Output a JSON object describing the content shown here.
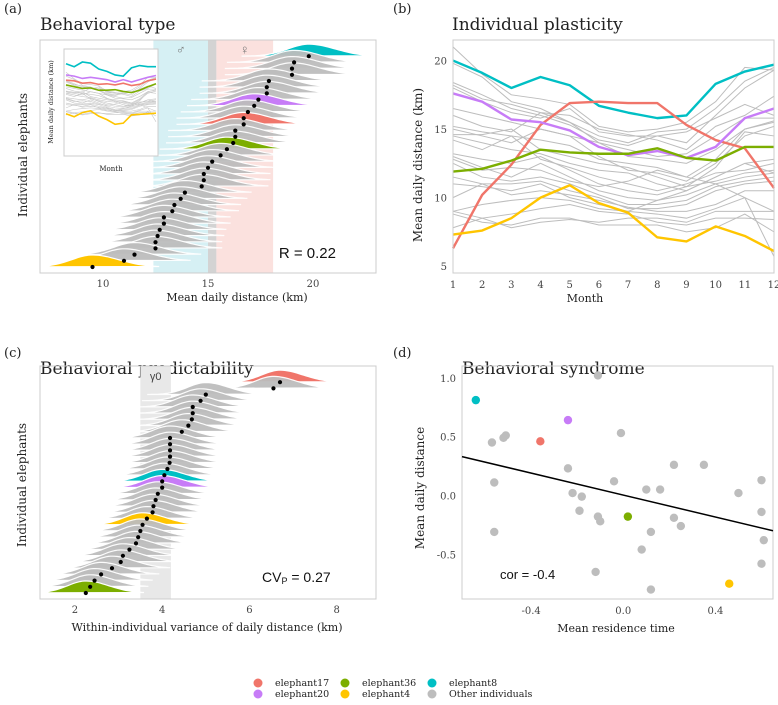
{
  "colors": {
    "elephant17": "#F0756A",
    "elephant20": "#C77CF7",
    "elephant36": "#7CAE00",
    "elephant4": "#FFC500",
    "elephant8": "#00BFC4",
    "other": "#BDBDBD",
    "male_band": "#D6F0F4",
    "female_band": "#FBE1DE",
    "gamma_band": "#E8E8E8",
    "divider_band": "#D3D3D3",
    "frame": "#CCCCCC"
  },
  "legend": {
    "items": [
      {
        "key": "elephant17",
        "label": "elephant17"
      },
      {
        "key": "elephant20",
        "label": "elephant20"
      },
      {
        "key": "elephant36",
        "label": "elephant36"
      },
      {
        "key": "elephant4",
        "label": "elephant4"
      },
      {
        "key": "elephant8",
        "label": "elephant8"
      },
      {
        "key": "other",
        "label": "Other individuals"
      }
    ]
  },
  "chart_data": [
    {
      "panel": "(a)",
      "type": "ridgeline",
      "title": "Behavioral type",
      "xlabel": "Mean daily distance (km)",
      "ylabel": "Individual elephants",
      "xlim": [
        7,
        23
      ],
      "xticks": [
        10,
        15,
        20
      ],
      "annotation": "R = 0.22",
      "bands": [
        {
          "label": "male-symbol",
          "glyph": "♂",
          "from": 12.4,
          "to": 15.0,
          "color": "male_band"
        },
        {
          "label": "divider",
          "glyph": "",
          "from": 15.0,
          "to": 15.4,
          "color": "divider_band"
        },
        {
          "label": "female-symbol",
          "glyph": "♀",
          "from": 15.4,
          "to": 18.1,
          "color": "female_band"
        }
      ],
      "individuals": [
        {
          "key": "elephant4",
          "mean": 9.5
        },
        {
          "key": "other",
          "mean": 11.0
        },
        {
          "key": "other",
          "mean": 11.5
        },
        {
          "key": "other",
          "mean": 12.5
        },
        {
          "key": "other",
          "mean": 12.5
        },
        {
          "key": "other",
          "mean": 12.6
        },
        {
          "key": "other",
          "mean": 12.7
        },
        {
          "key": "other",
          "mean": 12.9
        },
        {
          "key": "other",
          "mean": 12.9
        },
        {
          "key": "other",
          "mean": 13.3
        },
        {
          "key": "other",
          "mean": 13.4
        },
        {
          "key": "other",
          "mean": 13.7
        },
        {
          "key": "other",
          "mean": 13.9
        },
        {
          "key": "other",
          "mean": 14.7
        },
        {
          "key": "other",
          "mean": 14.8
        },
        {
          "key": "other",
          "mean": 14.8
        },
        {
          "key": "other",
          "mean": 15.0
        },
        {
          "key": "other",
          "mean": 15.2
        },
        {
          "key": "other",
          "mean": 15.6
        },
        {
          "key": "elephant36",
          "mean": 15.9
        },
        {
          "key": "other",
          "mean": 16.2
        },
        {
          "key": "other",
          "mean": 16.3
        },
        {
          "key": "other",
          "mean": 16.3
        },
        {
          "key": "elephant17",
          "mean": 16.7
        },
        {
          "key": "other",
          "mean": 16.7
        },
        {
          "key": "other",
          "mean": 16.9
        },
        {
          "key": "elephant20",
          "mean": 17.2
        },
        {
          "key": "other",
          "mean": 17.4
        },
        {
          "key": "other",
          "mean": 17.8
        },
        {
          "key": "other",
          "mean": 17.8
        },
        {
          "key": "other",
          "mean": 17.9
        },
        {
          "key": "other",
          "mean": 19.0
        },
        {
          "key": "other",
          "mean": 19.0
        },
        {
          "key": "other",
          "mean": 19.1
        },
        {
          "key": "elephant8",
          "mean": 19.8
        }
      ],
      "inset": {
        "xlabel": "Month",
        "ylabel": "Mean daily distance (km)"
      }
    },
    {
      "panel": "(b)",
      "type": "line",
      "title": "Individual plasticity",
      "xlabel": "Month",
      "ylabel": "Mean daily distance (km)",
      "x": [
        1,
        2,
        3,
        4,
        5,
        6,
        7,
        8,
        9,
        10,
        11,
        12
      ],
      "xlim": [
        1,
        12
      ],
      "ylim": [
        4.5,
        21.5
      ],
      "yticks": [
        5,
        10,
        15,
        20
      ],
      "series": [
        {
          "name": "elephant8",
          "values": [
            20.0,
            19.1,
            18.0,
            18.8,
            18.2,
            16.7,
            16.2,
            15.8,
            16.0,
            18.3,
            19.2,
            19.7
          ]
        },
        {
          "name": "elephant17",
          "values": [
            6.3,
            10.2,
            12.4,
            15.3,
            16.9,
            17.0,
            16.9,
            16.9,
            15.3,
            14.2,
            13.6,
            10.7
          ]
        },
        {
          "name": "elephant20",
          "values": [
            17.6,
            17.0,
            15.7,
            15.5,
            14.9,
            13.7,
            13.1,
            13.4,
            12.9,
            13.7,
            15.8,
            16.5
          ]
        },
        {
          "name": "elephant36",
          "values": [
            11.9,
            12.1,
            12.7,
            13.5,
            13.3,
            13.2,
            13.2,
            13.6,
            12.9,
            12.7,
            13.7,
            13.7
          ]
        },
        {
          "name": "elephant4",
          "values": [
            7.3,
            7.6,
            8.5,
            10.0,
            10.9,
            9.6,
            8.9,
            7.1,
            6.8,
            7.9,
            7.2,
            6.1
          ]
        }
      ],
      "other_series": [
        [
          21.0,
          19.0,
          17.5,
          17.2,
          16.8,
          15.2,
          14.8,
          15.0,
          15.5,
          17.0,
          19.5,
          19.3
        ],
        [
          19.8,
          18.8,
          17.0,
          16.5,
          15.5,
          14.5,
          14.0,
          14.8,
          15.0,
          16.5,
          18.5,
          19.5
        ],
        [
          18.4,
          17.5,
          16.5,
          16.0,
          15.3,
          14.2,
          13.8,
          14.5,
          14.0,
          16.0,
          18.0,
          19.3
        ],
        [
          18.2,
          17.2,
          16.8,
          16.2,
          16.0,
          15.0,
          14.6,
          14.2,
          13.5,
          15.2,
          16.0,
          17.4
        ],
        [
          18.0,
          17.0,
          16.2,
          15.8,
          16.5,
          14.8,
          14.5,
          14.5,
          14.8,
          15.8,
          16.8,
          16.0
        ],
        [
          16.5,
          16.0,
          15.5,
          15.0,
          14.5,
          14.0,
          13.5,
          13.0,
          13.2,
          14.5,
          15.8,
          15.8
        ],
        [
          16.0,
          15.2,
          14.8,
          16.2,
          15.5,
          14.0,
          13.0,
          12.8,
          12.5,
          13.5,
          15.0,
          15.6
        ],
        [
          15.2,
          14.8,
          14.5,
          14.2,
          13.8,
          12.8,
          12.5,
          12.2,
          11.5,
          12.8,
          15.0,
          15.5
        ],
        [
          15.0,
          14.5,
          14.0,
          15.0,
          14.5,
          13.0,
          12.0,
          11.8,
          11.2,
          12.5,
          14.5,
          15.2
        ],
        [
          14.6,
          14.6,
          15.0,
          13.5,
          13.0,
          12.5,
          12.2,
          11.5,
          10.8,
          12.2,
          14.8,
          14.5
        ],
        [
          14.5,
          14.0,
          13.5,
          13.2,
          12.5,
          12.0,
          11.8,
          11.0,
          10.5,
          11.5,
          12.5,
          12.8
        ],
        [
          14.2,
          13.5,
          14.5,
          12.8,
          12.2,
          11.5,
          11.0,
          10.5,
          11.0,
          11.8,
          12.0,
          12.5
        ],
        [
          13.2,
          12.8,
          12.5,
          13.0,
          12.0,
          11.0,
          10.5,
          10.2,
          10.8,
          11.2,
          11.8,
          12.0
        ],
        [
          13.0,
          12.2,
          11.5,
          12.5,
          11.5,
          10.5,
          10.0,
          9.8,
          10.2,
          11.0,
          11.5,
          11.8
        ],
        [
          12.5,
          11.5,
          11.2,
          11.5,
          11.0,
          10.2,
          9.5,
          9.5,
          9.8,
          10.8,
          11.2,
          11.5
        ],
        [
          11.5,
          11.0,
          11.0,
          11.2,
          10.5,
          10.0,
          9.2,
          9.2,
          9.5,
          10.5,
          11.0,
          11.2
        ],
        [
          11.0,
          10.8,
          10.5,
          11.0,
          10.0,
          9.5,
          9.0,
          9.8,
          10.5,
          11.5,
          12.5,
          11.8
        ],
        [
          10.0,
          11.0,
          10.2,
          10.5,
          10.2,
          9.8,
          9.3,
          9.0,
          9.0,
          9.5,
          10.5,
          10.5
        ],
        [
          9.0,
          9.5,
          9.8,
          10.0,
          9.8,
          9.2,
          9.0,
          8.8,
          8.5,
          9.2,
          10.0,
          9.0
        ],
        [
          9.0,
          8.5,
          7.8,
          8.2,
          8.4,
          8.2,
          8.5,
          8.5,
          8.2,
          9.0,
          9.0,
          9.0
        ],
        [
          8.8,
          8.2,
          8.0,
          8.5,
          8.5,
          8.0,
          8.0,
          8.0,
          7.5,
          7.8,
          8.8,
          7.5
        ],
        [
          7.8,
          8.5,
          8.8,
          9.2,
          9.5,
          9.0,
          8.8,
          8.2,
          8.0,
          8.5,
          8.5,
          8.4
        ],
        [
          12.8,
          12.0,
          12.2,
          12.0,
          11.2,
          10.8,
          11.2,
          12.0,
          11.5,
          11.0,
          10.0,
          5.7
        ]
      ]
    },
    {
      "panel": "(c)",
      "type": "ridgeline",
      "title": "Behavioral predictability",
      "xlabel": "Within-individual variance of daily distance (km)",
      "ylabel": "Individual elephants",
      "xlim": [
        1.2,
        8.9
      ],
      "xticks": [
        2,
        4,
        6,
        8
      ],
      "annotation": "CV",
      "annotation_sub": "P",
      "annotation_value": " = 0.27",
      "band": {
        "label": "γ0",
        "from": 3.5,
        "to": 4.2
      },
      "individuals": [
        {
          "key": "elephant36",
          "mean": 2.25
        },
        {
          "key": "other",
          "mean": 2.35
        },
        {
          "key": "other",
          "mean": 2.45
        },
        {
          "key": "other",
          "mean": 2.6
        },
        {
          "key": "other",
          "mean": 2.85
        },
        {
          "key": "other",
          "mean": 3.05
        },
        {
          "key": "other",
          "mean": 3.1
        },
        {
          "key": "other",
          "mean": 3.25
        },
        {
          "key": "other",
          "mean": 3.4
        },
        {
          "key": "other",
          "mean": 3.45
        },
        {
          "key": "other",
          "mean": 3.5
        },
        {
          "key": "elephant4",
          "mean": 3.55
        },
        {
          "key": "other",
          "mean": 3.65
        },
        {
          "key": "other",
          "mean": 3.78
        },
        {
          "key": "other",
          "mean": 3.8
        },
        {
          "key": "other",
          "mean": 3.85
        },
        {
          "key": "other",
          "mean": 3.9
        },
        {
          "key": "elephant20",
          "mean": 4.0
        },
        {
          "key": "elephant8",
          "mean": 4.0
        },
        {
          "key": "other",
          "mean": 4.05
        },
        {
          "key": "other",
          "mean": 4.12
        },
        {
          "key": "other",
          "mean": 4.17
        },
        {
          "key": "other",
          "mean": 4.18
        },
        {
          "key": "other",
          "mean": 4.18
        },
        {
          "key": "other",
          "mean": 4.18
        },
        {
          "key": "other",
          "mean": 4.18
        },
        {
          "key": "other",
          "mean": 4.45
        },
        {
          "key": "other",
          "mean": 4.6
        },
        {
          "key": "other",
          "mean": 4.68
        },
        {
          "key": "other",
          "mean": 4.7
        },
        {
          "key": "other",
          "mean": 4.7
        },
        {
          "key": "other",
          "mean": 4.88
        },
        {
          "key": "other",
          "mean": 5.0
        },
        {
          "key": "other",
          "mean": 6.55
        },
        {
          "key": "elephant17",
          "mean": 6.7
        }
      ]
    },
    {
      "panel": "(d)",
      "type": "scatter",
      "title": "Behavioral syndrome",
      "xlabel": "Mean residence time",
      "ylabel": "Mean daily distance",
      "xlim": [
        -0.7,
        0.65
      ],
      "ylim": [
        -0.88,
        1.1
      ],
      "xticks": [
        -0.4,
        0.0,
        0.4
      ],
      "yticks": [
        -0.5,
        0.0,
        0.5,
        1.0
      ],
      "xtick_labels": [
        "-0.4",
        "0.0",
        "0.4"
      ],
      "ytick_labels": [
        "-0.5",
        "0.0",
        "0.5",
        "1.0"
      ],
      "annotation": "cor = -0.4",
      "regression": {
        "x": [
          -0.7,
          0.65
        ],
        "y": [
          0.33,
          -0.3
        ]
      },
      "points": [
        {
          "key": "elephant8",
          "x": -0.64,
          "y": 0.81
        },
        {
          "key": "elephant20",
          "x": -0.24,
          "y": 0.64
        },
        {
          "key": "elephant17",
          "x": -0.36,
          "y": 0.46
        },
        {
          "key": "elephant36",
          "x": 0.02,
          "y": -0.18
        },
        {
          "key": "elephant4",
          "x": 0.46,
          "y": -0.75
        },
        {
          "key": "other",
          "x": -0.11,
          "y": 1.02
        },
        {
          "key": "other",
          "x": -0.57,
          "y": 0.45
        },
        {
          "key": "other",
          "x": -0.52,
          "y": 0.49
        },
        {
          "key": "other",
          "x": -0.51,
          "y": 0.51
        },
        {
          "key": "other",
          "x": -0.56,
          "y": 0.11
        },
        {
          "key": "other",
          "x": -0.56,
          "y": -0.31
        },
        {
          "key": "other",
          "x": -0.01,
          "y": 0.53
        },
        {
          "key": "other",
          "x": -0.24,
          "y": 0.23
        },
        {
          "key": "other",
          "x": -0.04,
          "y": 0.12
        },
        {
          "key": "other",
          "x": -0.22,
          "y": 0.02
        },
        {
          "key": "other",
          "x": -0.18,
          "y": -0.01
        },
        {
          "key": "other",
          "x": -0.19,
          "y": -0.13
        },
        {
          "key": "other",
          "x": -0.11,
          "y": -0.18
        },
        {
          "key": "other",
          "x": -0.1,
          "y": -0.22
        },
        {
          "key": "other",
          "x": 0.1,
          "y": 0.05
        },
        {
          "key": "other",
          "x": 0.16,
          "y": 0.05
        },
        {
          "key": "other",
          "x": 0.22,
          "y": 0.26
        },
        {
          "key": "other",
          "x": 0.35,
          "y": 0.26
        },
        {
          "key": "other",
          "x": 0.12,
          "y": -0.31
        },
        {
          "key": "other",
          "x": 0.08,
          "y": -0.46
        },
        {
          "key": "other",
          "x": 0.22,
          "y": -0.19
        },
        {
          "key": "other",
          "x": 0.25,
          "y": -0.26
        },
        {
          "key": "other",
          "x": 0.5,
          "y": 0.02
        },
        {
          "key": "other",
          "x": 0.6,
          "y": 0.13
        },
        {
          "key": "other",
          "x": 0.6,
          "y": -0.14
        },
        {
          "key": "other",
          "x": 0.61,
          "y": -0.38
        },
        {
          "key": "other",
          "x": 0.6,
          "y": -0.58
        },
        {
          "key": "other",
          "x": -0.12,
          "y": -0.65
        },
        {
          "key": "other",
          "x": 0.12,
          "y": -0.8
        }
      ]
    }
  ]
}
